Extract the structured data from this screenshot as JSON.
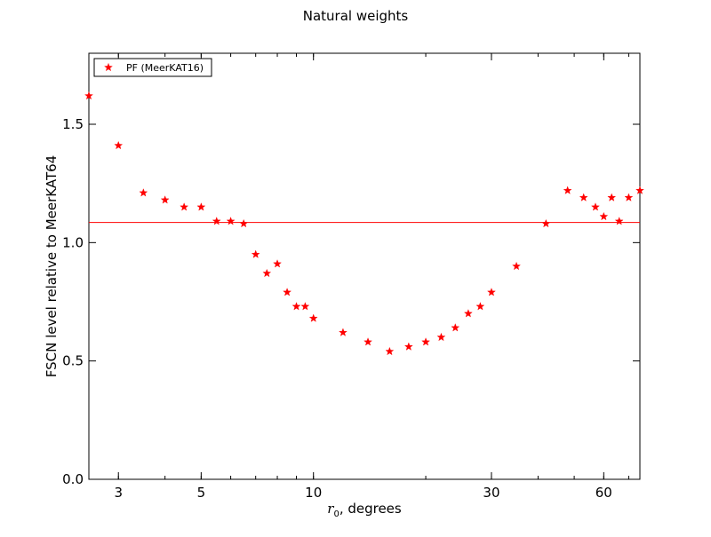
{
  "chart_data": {
    "type": "scatter",
    "title": "Natural weights",
    "xlabel_symbol": "r",
    "xlabel_subscript": "0",
    "xlabel_rest": ", degrees",
    "ylabel": "FSCN level relative to MeerKAT64",
    "x_scale": "log",
    "xlim": [
      2.5,
      75
    ],
    "ylim": [
      0.0,
      1.8
    ],
    "x_ticks": [
      3,
      5,
      10,
      30,
      60
    ],
    "x_tick_labels": [
      "3",
      "5",
      "10",
      "30",
      "60"
    ],
    "y_ticks": [
      0.0,
      0.5,
      1.0,
      1.5
    ],
    "y_tick_labels": [
      "0.0",
      "0.5",
      "1.0",
      "1.5"
    ],
    "grid": false,
    "legend_position": "top-left",
    "reference_line": {
      "y": 1.085,
      "color": "#ff0000"
    },
    "series": [
      {
        "name": "PF (MeerKAT16)",
        "marker": "star",
        "color": "#ff0000",
        "x": [
          2.5,
          3.0,
          3.5,
          4.0,
          4.5,
          5.0,
          5.5,
          6.0,
          6.5,
          7.0,
          7.5,
          8.0,
          8.5,
          9.0,
          9.5,
          10.0,
          12.0,
          14.0,
          16.0,
          18.0,
          20.0,
          22.0,
          24.0,
          26.0,
          28.0,
          30.0,
          35.0,
          42.0,
          48.0,
          53.0,
          57.0,
          60.0,
          63.0,
          66.0,
          70.0,
          75.0
        ],
        "y": [
          1.62,
          1.41,
          1.21,
          1.18,
          1.15,
          1.15,
          1.09,
          1.09,
          1.08,
          0.95,
          0.87,
          0.91,
          0.79,
          0.73,
          0.73,
          0.68,
          0.62,
          0.58,
          0.54,
          0.56,
          0.58,
          0.6,
          0.64,
          0.7,
          0.73,
          0.79,
          0.9,
          1.08,
          1.22,
          1.19,
          1.15,
          1.11,
          1.19,
          1.09,
          1.19,
          1.22
        ]
      }
    ]
  }
}
